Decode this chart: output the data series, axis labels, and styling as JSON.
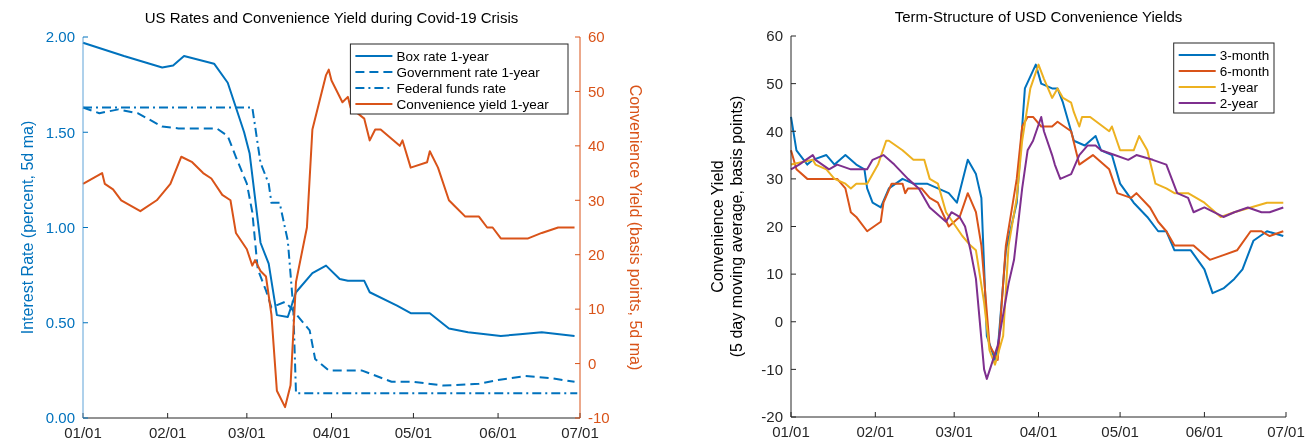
{
  "chart_data": [
    {
      "type": "line",
      "title": "US Rates and Convenience Yield during Covid-19 Crisis",
      "ylabel": "Interest Rate (percent, 5d ma)",
      "y2label": "Convenience Yield (basis points, 5d ma)",
      "xlim": [
        "--01-01",
        "--07-01"
      ],
      "xticks": [
        {
          "value": "--01-01",
          "label": "01/01"
        },
        {
          "value": "--02-01",
          "label": "02/01"
        },
        {
          "value": "--03-01",
          "label": "03/01"
        },
        {
          "value": "--04-01",
          "label": "04/01"
        },
        {
          "value": "--05-01",
          "label": "05/01"
        },
        {
          "value": "--06-01",
          "label": "06/01"
        },
        {
          "value": "--07-01",
          "label": "07/01"
        }
      ],
      "ylim": [
        0,
        2
      ],
      "yticks": [
        {
          "value": 0,
          "label": "0.00"
        },
        {
          "value": 0.5,
          "label": "0.50"
        },
        {
          "value": 1,
          "label": "1.00"
        },
        {
          "value": 1.5,
          "label": "1.50"
        },
        {
          "value": 2,
          "label": "2.00"
        }
      ],
      "y2lim": [
        -10,
        60
      ],
      "y2ticks": [
        -10,
        0,
        10,
        20,
        30,
        40,
        50,
        60
      ],
      "legend": "top right",
      "marker": "none",
      "series": [
        {
          "name": "Box rate 1-year",
          "color": "#0072bd",
          "line_style": "solid",
          "x": [
            "--01-01",
            "--01-16",
            "--01-30",
            "--02-03",
            "--02-07",
            "--02-18",
            "--02-23",
            "--02-26",
            "--02-29",
            "--03-02",
            "--03-06",
            "--03-09",
            "--03-12",
            "--03-16",
            "--03-19",
            "--03-25",
            "--03-30",
            "--04-04",
            "--04-07",
            "--04-13",
            "--04-15",
            "--04-25",
            "--04-30",
            "--05-07",
            "--05-14",
            "--05-21",
            "--06-02",
            "--06-09",
            "--06-17",
            "--06-29"
          ],
          "values": [
            1.97,
            1.9,
            1.84,
            1.85,
            1.9,
            1.86,
            1.76,
            1.63,
            1.5,
            1.39,
            0.92,
            0.81,
            0.54,
            0.53,
            0.66,
            0.76,
            0.8,
            0.73,
            0.72,
            0.72,
            0.66,
            0.59,
            0.55,
            0.55,
            0.47,
            0.45,
            0.43,
            0.44,
            0.45,
            0.43
          ]
        },
        {
          "name": "Government rate 1-year",
          "color": "#0072bd",
          "line_style": "dashed",
          "x": [
            "--01-01",
            "--01-07",
            "--01-14",
            "--01-21",
            "--01-30",
            "--02-05",
            "--02-19",
            "--02-23",
            "--02-26",
            "--03-01",
            "--03-03",
            "--03-05",
            "--03-08",
            "--03-10",
            "--03-15",
            "--03-17",
            "--03-24",
            "--03-26",
            "--03-31",
            "--04-12",
            "--04-23",
            "--05-01",
            "--05-12",
            "--05-25",
            "--06-01",
            "--06-11",
            "--06-20",
            "--06-29"
          ],
          "values": [
            1.63,
            1.6,
            1.62,
            1.6,
            1.53,
            1.52,
            1.52,
            1.48,
            1.37,
            1.23,
            1.08,
            0.78,
            0.67,
            0.58,
            0.61,
            0.58,
            0.46,
            0.31,
            0.25,
            0.25,
            0.19,
            0.19,
            0.17,
            0.18,
            0.2,
            0.22,
            0.21,
            0.19
          ]
        },
        {
          "name": "Federal funds rate",
          "color": "#0072bd",
          "line_style": "dashdot",
          "x": [
            "--01-01",
            "--03-03",
            "--03-06",
            "--03-09",
            "--03-10",
            "--03-13",
            "--03-16",
            "--03-18",
            "--03-19",
            "--06-30"
          ],
          "values": [
            1.63,
            1.63,
            1.34,
            1.23,
            1.13,
            1.13,
            0.93,
            0.58,
            0.13,
            0.13
          ]
        },
        {
          "name": "Convenience yield 1-year",
          "color": "#d95319",
          "line_style": "solid",
          "axis": "y2",
          "x": [
            "--01-01",
            "--01-08",
            "--01-09",
            "--01-12",
            "--01-15",
            "--01-22",
            "--01-28",
            "--02-02",
            "--02-06",
            "--02-10",
            "--02-14",
            "--02-17",
            "--02-21",
            "--02-24",
            "--02-26",
            "--03-01",
            "--03-03",
            "--03-04",
            "--03-06",
            "--03-08",
            "--03-10",
            "--03-12",
            "--03-15",
            "--03-17",
            "--03-19",
            "--03-23",
            "--03-25",
            "--03-30",
            "--03-31",
            "--04-01",
            "--04-05",
            "--04-07",
            "--04-08",
            "--04-13",
            "--04-15",
            "--04-17",
            "--04-19",
            "--04-26",
            "--04-27",
            "--04-30",
            "--05-06",
            "--05-07",
            "--05-10",
            "--05-14",
            "--05-16",
            "--05-20",
            "--05-25",
            "--05-28",
            "--05-30",
            "--06-02",
            "--06-08",
            "--06-12",
            "--06-17",
            "--06-23",
            "--06-29"
          ],
          "values": [
            33,
            35,
            33,
            32,
            30,
            28,
            30,
            33,
            38,
            37,
            35,
            34,
            31,
            30,
            24,
            21,
            18,
            19,
            17,
            16,
            9,
            -5,
            -8,
            -4,
            15,
            25,
            43,
            53,
            54,
            52,
            48,
            49,
            47,
            45,
            41,
            43,
            43,
            40,
            41,
            36,
            37,
            39,
            36,
            30,
            29,
            27,
            27,
            25,
            25,
            23,
            23,
            23,
            24,
            25,
            25
          ]
        }
      ]
    },
    {
      "type": "line",
      "title": "Term-Structure of USD Convenience Yields",
      "ylabel": "Convenience Yield\n(5 day moving average, basis points)",
      "xlim": [
        "--01-01",
        "--07-01"
      ],
      "xticks": [
        {
          "value": "--01-01",
          "label": "01/01"
        },
        {
          "value": "--02-01",
          "label": "02/01"
        },
        {
          "value": "--03-01",
          "label": "03/01"
        },
        {
          "value": "--04-01",
          "label": "04/01"
        },
        {
          "value": "--05-01",
          "label": "05/01"
        },
        {
          "value": "--06-01",
          "label": "06/01"
        },
        {
          "value": "--07-01",
          "label": "07/01"
        }
      ],
      "ylim": [
        -20,
        60
      ],
      "yticks": [
        -20,
        -10,
        0,
        10,
        20,
        30,
        40,
        50,
        60
      ],
      "legend": "top right",
      "marker": "none",
      "line_style": "solid",
      "series": [
        {
          "name": "3-month",
          "color": "#0072bd",
          "x": [
            "--01-01",
            "--01-03",
            "--01-07",
            "--01-09",
            "--01-14",
            "--01-17",
            "--01-21",
            "--01-25",
            "--01-28",
            "--01-29",
            "--01-31",
            "--02-03",
            "--02-06",
            "--02-11",
            "--02-15",
            "--02-20",
            "--02-24",
            "--02-28",
            "--03-02",
            "--03-06",
            "--03-09",
            "--03-11",
            "--03-13",
            "--03-16",
            "--03-17",
            "--03-20",
            "--03-24",
            "--03-27",
            "--03-31",
            "--04-02",
            "--04-06",
            "--04-08",
            "--04-10",
            "--04-14",
            "--04-18",
            "--04-22",
            "--04-24",
            "--04-28",
            "--05-01",
            "--05-06",
            "--05-11",
            "--05-15",
            "--05-18",
            "--05-21",
            "--05-27",
            "--06-01",
            "--06-04",
            "--06-08",
            "--06-12",
            "--06-15",
            "--06-19",
            "--06-24",
            "--06-30"
          ],
          "values": [
            43,
            36,
            33,
            34,
            35,
            33,
            35,
            33,
            32,
            28,
            25,
            24,
            28,
            30,
            29,
            29,
            28,
            27,
            25,
            34,
            31,
            26,
            -3,
            -8,
            -6,
            15,
            25,
            49,
            54,
            50,
            49,
            49,
            46,
            38,
            37,
            39,
            36,
            35,
            29,
            25,
            22,
            19,
            19,
            15,
            15,
            11,
            6,
            7,
            9,
            11,
            17,
            19,
            18
          ]
        },
        {
          "name": "6-month",
          "color": "#d95319",
          "x": [
            "--01-01",
            "--01-03",
            "--01-07",
            "--01-14",
            "--01-18",
            "--01-21",
            "--01-23",
            "--01-25",
            "--01-29",
            "--02-03",
            "--02-04",
            "--02-07",
            "--02-11",
            "--02-12",
            "--02-13",
            "--02-18",
            "--02-21",
            "--02-24",
            "--02-28",
            "--03-03",
            "--03-06",
            "--03-09",
            "--03-11",
            "--03-14",
            "--03-17",
            "--03-20",
            "--03-24",
            "--03-26",
            "--03-28",
            "--03-30",
            "--04-02",
            "--04-06",
            "--04-08",
            "--04-13",
            "--04-16",
            "--04-21",
            "--04-27",
            "--04-30",
            "--05-05",
            "--05-07",
            "--05-12",
            "--05-15",
            "--05-18",
            "--05-21",
            "--05-28",
            "--05-30",
            "--06-03",
            "--06-08",
            "--06-13",
            "--06-18",
            "--06-22",
            "--06-25",
            "--06-30"
          ],
          "values": [
            36,
            32,
            30,
            30,
            30,
            28,
            23,
            22,
            19,
            21,
            25,
            29,
            29,
            27,
            28,
            28,
            26,
            25,
            20,
            22,
            27,
            23,
            16,
            -5,
            -8,
            16,
            30,
            41,
            43,
            43,
            41,
            41,
            42,
            40,
            33,
            35,
            32,
            27,
            26,
            27,
            24,
            21,
            19,
            16,
            16,
            15,
            13,
            14,
            15,
            19,
            19,
            18,
            19
          ]
        },
        {
          "name": "1-year",
          "color": "#edb120",
          "x": [
            "--01-01",
            "--01-09",
            "--01-10",
            "--01-14",
            "--01-17",
            "--01-21",
            "--01-23",
            "--01-25",
            "--01-29",
            "--02-02",
            "--02-05",
            "--02-06",
            "--02-11",
            "--02-15",
            "--02-19",
            "--02-21",
            "--02-24",
            "--02-27",
            "--03-04",
            "--03-07",
            "--03-09",
            "--03-12",
            "--03-14",
            "--03-16",
            "--03-19",
            "--03-21",
            "--03-24",
            "--03-26",
            "--03-29",
            "--04-01",
            "--04-03",
            "--04-06",
            "--04-08",
            "--04-10",
            "--04-13",
            "--04-14",
            "--04-16",
            "--04-17",
            "--04-20",
            "--04-27",
            "--04-28",
            "--05-01",
            "--05-06",
            "--05-08",
            "--05-11",
            "--05-14",
            "--05-18",
            "--05-21",
            "--05-26",
            "--06-01",
            "--06-07",
            "--06-12",
            "--06-18",
            "--06-24",
            "--06-30"
          ],
          "values": [
            33,
            34,
            33,
            32,
            30,
            29,
            28,
            29,
            29,
            33,
            38,
            38,
            36,
            34,
            34,
            30,
            29,
            23,
            18,
            16,
            15,
            4,
            -6,
            -9,
            -3,
            16,
            26,
            38,
            49,
            54,
            51,
            47,
            49,
            47,
            46,
            44,
            41,
            43,
            43,
            40,
            41,
            36,
            36,
            39,
            36,
            29,
            28,
            27,
            27,
            25,
            22,
            23,
            24,
            25,
            25
          ]
        },
        {
          "name": "2-year",
          "color": "#7e2f8e",
          "x": [
            "--01-01",
            "--01-04",
            "--01-09",
            "--01-10",
            "--01-15",
            "--01-18",
            "--01-23",
            "--01-25",
            "--01-29",
            "--01-31",
            "--02-04",
            "--02-08",
            "--02-13",
            "--02-17",
            "--02-21",
            "--02-25",
            "--02-27",
            "--02-29",
            "--03-03",
            "--03-05",
            "--03-07",
            "--03-09",
            "--03-12",
            "--03-13",
            "--03-17",
            "--03-21",
            "--03-23",
            "--03-26",
            "--03-28",
            "--03-30",
            "--04-02",
            "--04-03",
            "--04-06",
            "--04-07",
            "--04-09",
            "--04-13",
            "--04-16",
            "--04-19",
            "--04-22",
            "--04-24",
            "--04-29",
            "--05-04",
            "--05-07",
            "--05-13",
            "--05-18",
            "--05-22",
            "--05-26",
            "--05-28",
            "--06-01",
            "--06-08",
            "--06-12",
            "--06-17",
            "--06-22",
            "--06-25",
            "--06-30"
          ],
          "values": [
            32,
            33,
            35,
            34,
            32,
            33,
            32,
            32,
            32,
            34,
            35,
            33,
            30,
            28,
            24,
            22,
            21,
            23,
            22,
            20,
            15,
            9,
            -10,
            -12,
            -5,
            8,
            13,
            28,
            36,
            38,
            43,
            40,
            35,
            33,
            30,
            31,
            35,
            37,
            37,
            36,
            35,
            34,
            35,
            34,
            33,
            27,
            26,
            23,
            24,
            22,
            23,
            24,
            23,
            23,
            24
          ]
        }
      ]
    }
  ]
}
